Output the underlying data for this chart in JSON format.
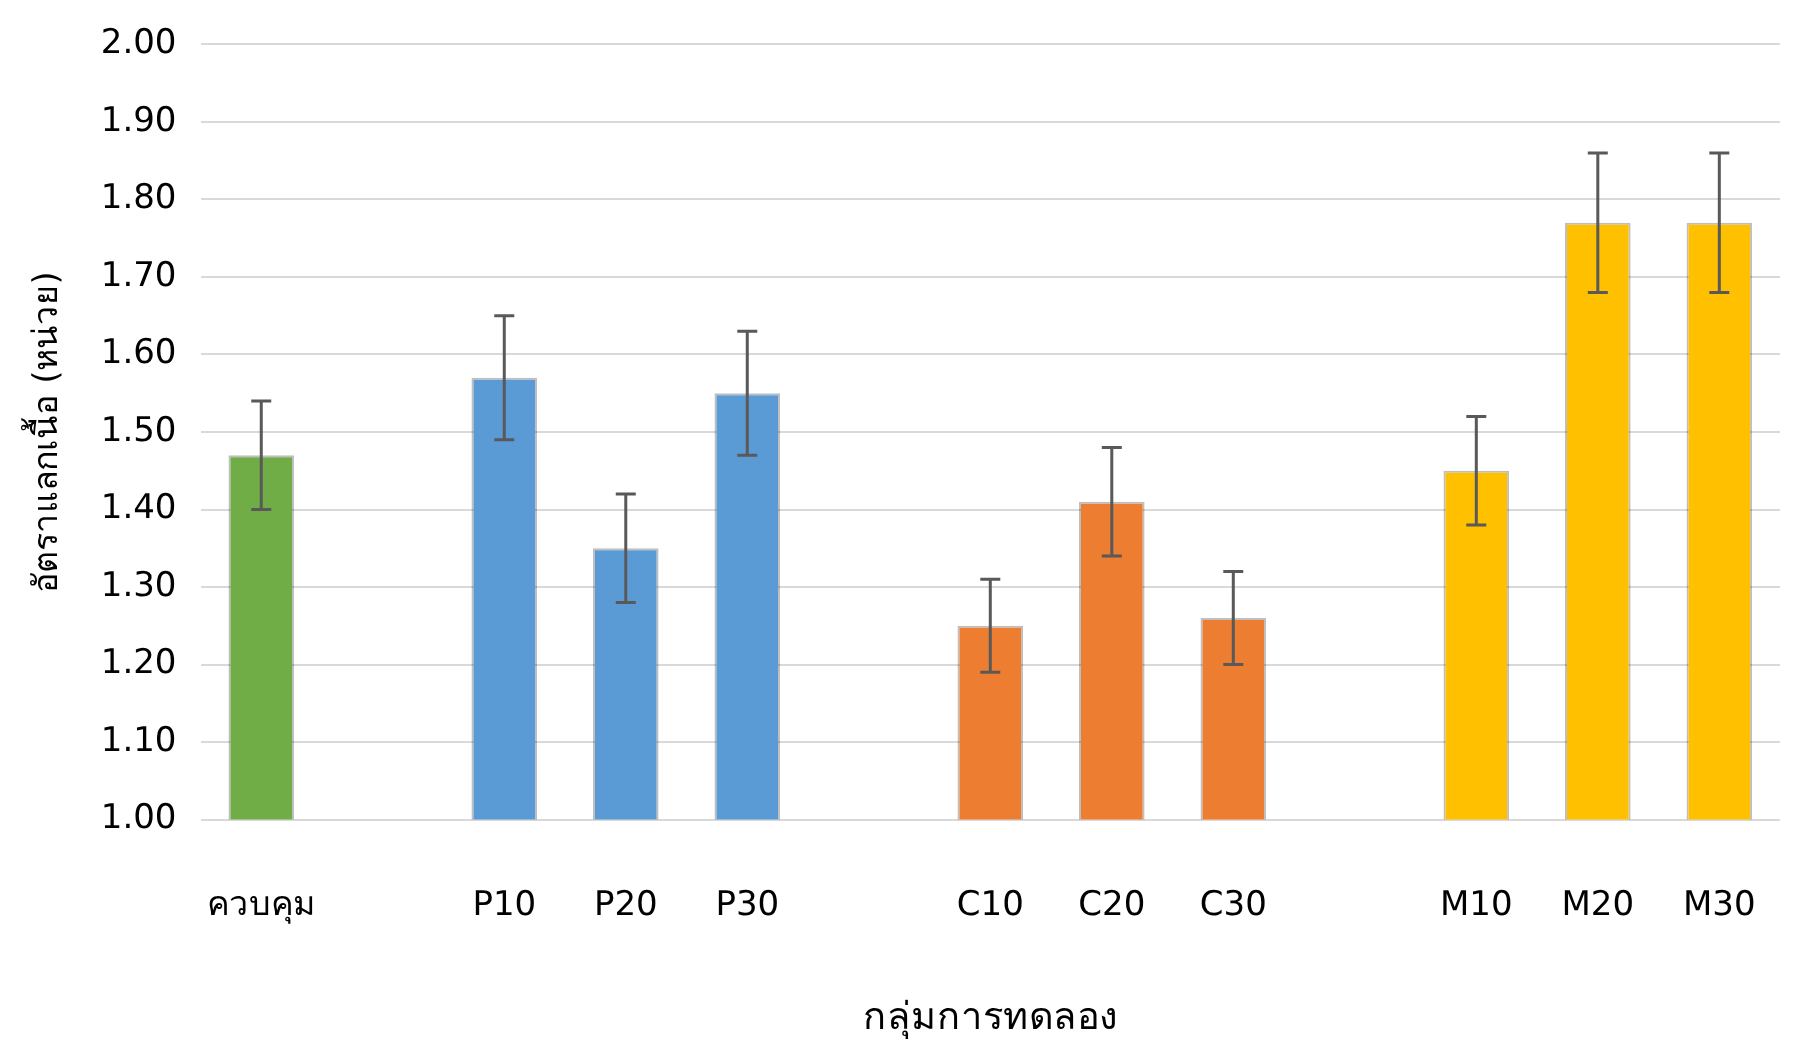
{
  "chart_data": {
    "type": "bar",
    "xlabel": "กลุ่มการทดลอง",
    "ylabel": "อัตราแลกเนื้อ (หน่วย)",
    "categories": [
      "ควบคุม",
      null,
      "P10",
      "P20",
      "P30",
      null,
      "C10",
      "C20",
      "C30",
      null,
      "M10",
      "M20",
      "M30"
    ],
    "values": [
      1.47,
      null,
      1.57,
      1.35,
      1.55,
      null,
      1.25,
      1.41,
      1.26,
      null,
      1.45,
      1.77,
      1.77
    ],
    "colors": [
      "#70ad47",
      null,
      "#5b9bd5",
      "#5b9bd5",
      "#5b9bd5",
      null,
      "#ed7d31",
      "#ed7d31",
      "#ed7d31",
      null,
      "#ffc000",
      "#ffc000",
      "#ffc000"
    ],
    "errors": [
      0.07,
      null,
      0.08,
      0.07,
      0.08,
      null,
      0.06,
      0.07,
      0.06,
      null,
      0.07,
      0.09,
      0.09
    ],
    "ylim": [
      1,
      2
    ],
    "yticks": [
      {
        "value": 1,
        "label": "1.00"
      },
      {
        "value": 1.1,
        "label": "1.10"
      },
      {
        "value": 1.2,
        "label": "1.20"
      },
      {
        "value": 1.3,
        "label": "1.30"
      },
      {
        "value": 1.4,
        "label": "1.40"
      },
      {
        "value": 1.5,
        "label": "1.50"
      },
      {
        "value": 1.6,
        "label": "1.60"
      },
      {
        "value": 1.7,
        "label": "1.70"
      },
      {
        "value": 1.8,
        "label": "1.80"
      },
      {
        "value": 1.9,
        "label": "1.90"
      },
      {
        "value": 2,
        "label": "2.00"
      }
    ],
    "grid": "y",
    "legend": false
  }
}
